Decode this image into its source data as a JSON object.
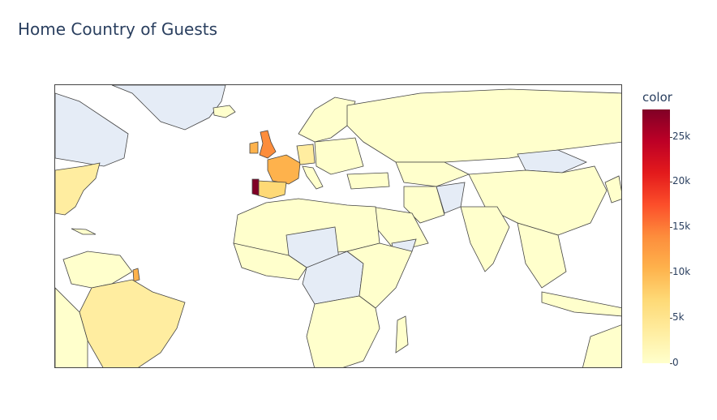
{
  "title": "Home Country of Guests",
  "colorbar": {
    "title": "color",
    "ticks": [
      "0",
      "5k",
      "10k",
      "15k",
      "20k",
      "25k"
    ],
    "tick_values": [
      0,
      5000,
      10000,
      15000,
      20000,
      25000
    ],
    "max": 28000,
    "colorscale": [
      "#ffffcc",
      "#ffeda0",
      "#fed976",
      "#feb24c",
      "#fd8d3c",
      "#fc4e2a",
      "#e31a1c",
      "#bd0026",
      "#800026"
    ]
  },
  "map": {
    "no_data_color": "#e5ecf6",
    "border_color": "#444444",
    "highlighted_countries": {
      "Portugal": "#800026",
      "United Kingdom": "#fd8d3c",
      "France": "#feb24c",
      "Spain": "#fed976",
      "Germany": "#ffeda0",
      "Brazil": "#ffeda0",
      "United States": "#ffeda0"
    }
  }
}
